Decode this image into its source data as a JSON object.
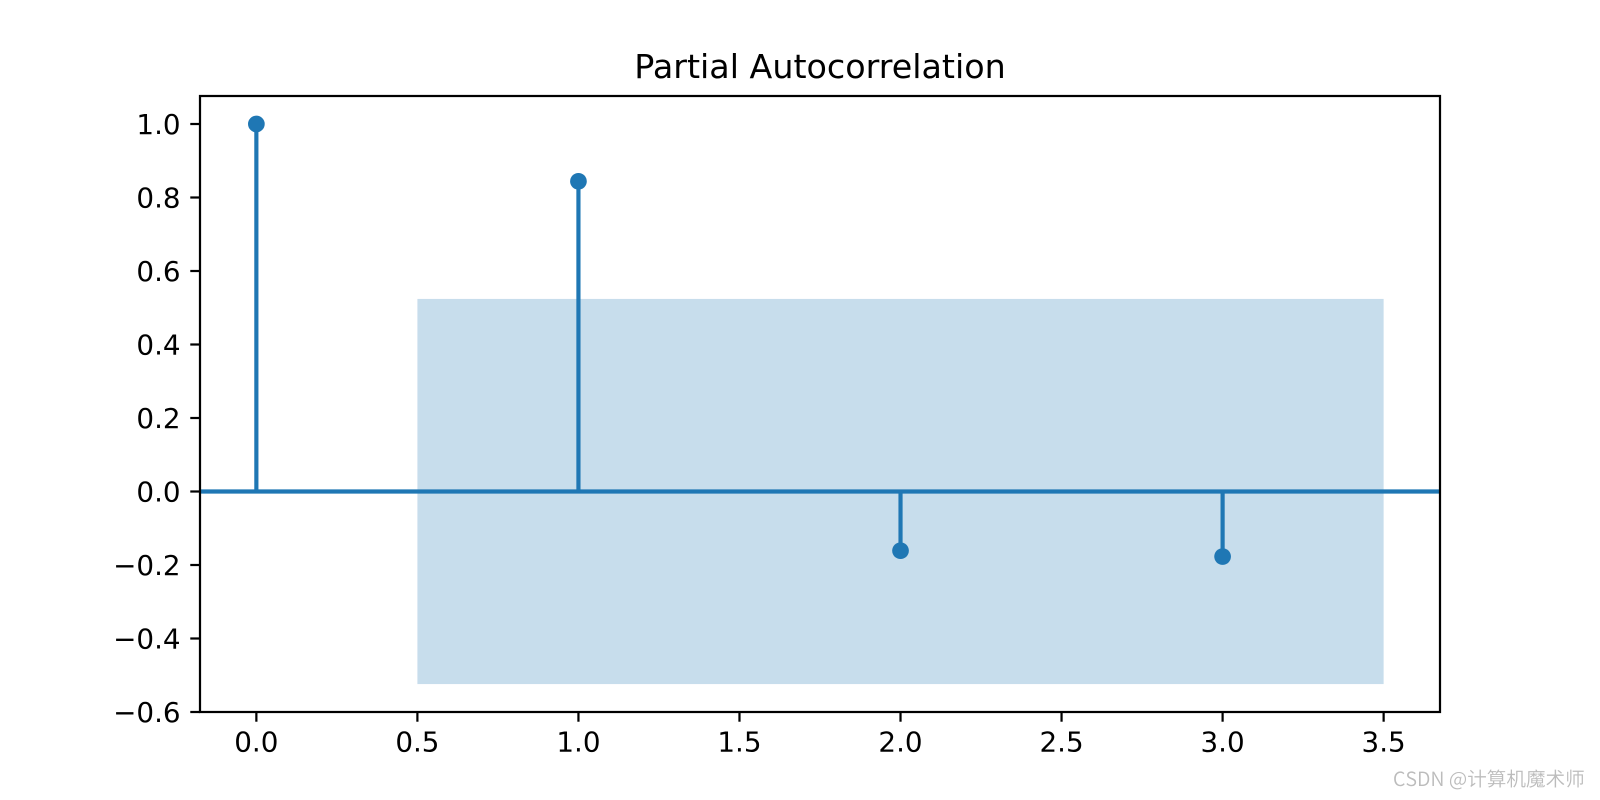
{
  "chart_data": {
    "type": "stem",
    "title": "Partial Autocorrelation",
    "xlabel": "",
    "ylabel": "",
    "x": [
      0,
      1,
      2,
      3
    ],
    "values": [
      1.0,
      0.844,
      -0.161,
      -0.177
    ],
    "xlim": [
      -0.175,
      3.675
    ],
    "ylim": [
      -0.6,
      1.0762
    ],
    "x_ticks": {
      "values": [
        0,
        0.5,
        1,
        1.5,
        2,
        2.5,
        3,
        3.5
      ],
      "labels": [
        "0.0",
        "0.5",
        "1.0",
        "1.5",
        "2.0",
        "2.5",
        "3.0",
        "3.5"
      ]
    },
    "y_ticks": {
      "values": [
        1,
        0.8,
        0.6,
        0.4,
        0.2,
        0,
        -0.2,
        -0.4,
        -0.6
      ],
      "labels": [
        "1.0",
        "0.8",
        "0.6",
        "0.4",
        "0.2",
        "0.0",
        "−0.2",
        "−0.4",
        "−0.6"
      ]
    },
    "confidence_band": {
      "x_start": 0.5,
      "x_end": 3.5,
      "y_low": -0.524,
      "y_high": 0.524
    },
    "zero_line_y": 0.0,
    "grid": false,
    "legend": null,
    "colors": {
      "stem": "#1f77b4",
      "marker": "#1f77b4",
      "zero_line": "#1f77b4",
      "band_fill": "#1f77b4",
      "band_opacity": 0.25,
      "axis": "#000000",
      "tick_label": "#000000",
      "title": "#000000",
      "background": "#ffffff"
    }
  },
  "watermark": {
    "text": "CSDN @计算机魔术师",
    "color": "#bcbcbc"
  }
}
